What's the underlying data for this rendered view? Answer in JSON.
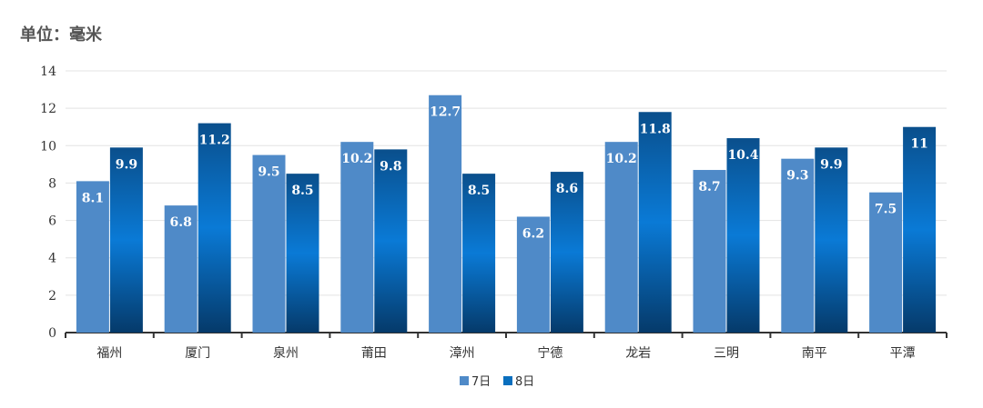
{
  "unit_title": "单位：毫米",
  "chart_data": {
    "type": "bar",
    "title": "单位：毫米",
    "xlabel": "",
    "ylabel": "",
    "ylim": [
      0,
      14
    ],
    "yticks": [
      0,
      2,
      4,
      6,
      8,
      10,
      12,
      14
    ],
    "grid": true,
    "legend_position": "bottom",
    "categories": [
      "福州",
      "厦门",
      "泉州",
      "莆田",
      "漳州",
      "宁德",
      "龙岩",
      "三明",
      "南平",
      "平潭"
    ],
    "series": [
      {
        "name": "7日",
        "color": "#4f8ac8",
        "values": [
          8.1,
          6.8,
          9.5,
          10.2,
          12.7,
          6.2,
          10.2,
          8.7,
          9.3,
          7.5
        ],
        "labels": [
          "8.1",
          "6.8",
          "9.5",
          "10.2",
          "12.7",
          "6.2",
          "10.2",
          "8.7",
          "9.3",
          "7.5"
        ]
      },
      {
        "name": "8日",
        "color": "#0a6fbe",
        "values": [
          9.9,
          11.2,
          8.5,
          9.8,
          8.5,
          8.6,
          11.8,
          10.4,
          9.9,
          11
        ],
        "labels": [
          "9.9",
          "11.2",
          "8.5",
          "9.8",
          "8.5",
          "8.6",
          "11.8",
          "10.4",
          "9.9",
          "11"
        ]
      }
    ]
  }
}
